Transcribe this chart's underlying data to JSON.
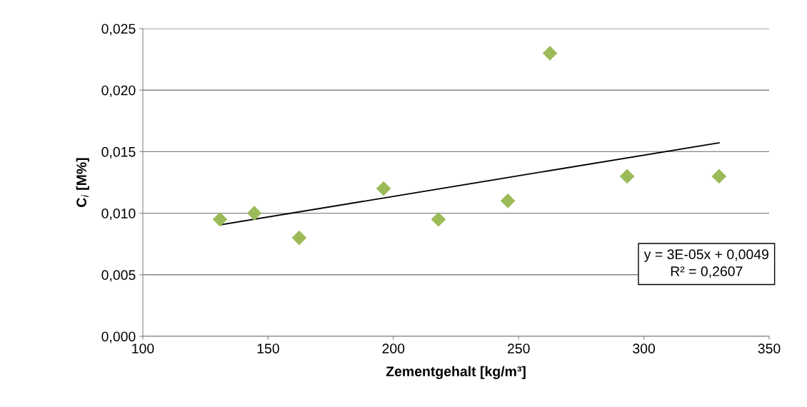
{
  "chart_data": {
    "type": "scatter",
    "xlabel": "Zementgehalt [kg/m³]",
    "ylabel": "C$_{i}$ [M%]",
    "series": [
      {
        "color": "#9bbb59",
        "marker": "diamond",
        "x": [
          130.8,
          144.5,
          162.4,
          196.1,
          218.0,
          245.7,
          262.5,
          293.3,
          330.0
        ],
        "values": [
          0.0095,
          0.01,
          0.008,
          0.012,
          0.0095,
          0.011,
          0.023,
          0.013,
          0.013
        ]
      },
      {
        "type": "line",
        "color": "#000000",
        "marker": "none",
        "line_style": "solid",
        "x": [
          130.8,
          330.0
        ],
        "values": [
          0.00905,
          0.01572
        ]
      }
    ],
    "xlim": [
      100,
      350
    ],
    "xticks": [
      100,
      150,
      200,
      250,
      300,
      350
    ],
    "ylim": [
      0,
      0.025
    ],
    "yticks": [
      {
        "value": 0,
        "label": "0,000"
      },
      {
        "value": 0.005,
        "label": "0,005"
      },
      {
        "value": 0.01,
        "label": "0,010"
      },
      {
        "value": 0.015,
        "label": "0,015"
      },
      {
        "value": 0.02,
        "label": "0,020"
      },
      {
        "value": 0.025,
        "label": "0,025"
      }
    ],
    "grid": "y",
    "legend": false,
    "annotations": [
      "y = 3E-05x + 0,0049\nR² = 0,2607"
    ]
  }
}
